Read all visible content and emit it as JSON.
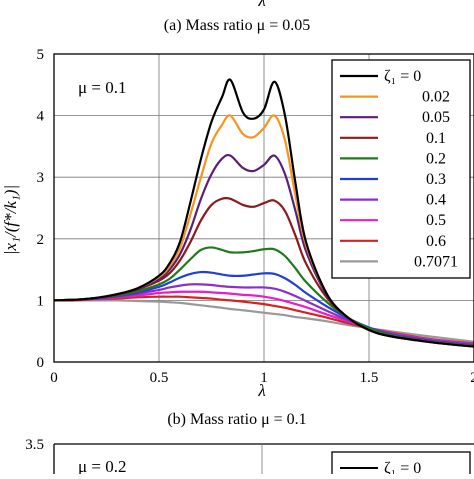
{
  "top_fragment": {
    "axis_label": "λ",
    "caption": "(a) Mass ratio μ = 0.05"
  },
  "bottom_fragment": {
    "ytick": "3.5",
    "mu_text": "μ = 0.2",
    "legend_first": "ζ₁ = 0"
  },
  "chart_data": {
    "type": "line",
    "caption": "(b) Mass ratio μ = 0.1",
    "annotation": "μ = 0.1",
    "xlabel": "λ",
    "ylabel": "|x₁/(f*/k₁)|",
    "xlim": [
      0,
      2
    ],
    "ylim": [
      0,
      5
    ],
    "xticks": [
      "0",
      "0.5",
      "1",
      "1.5",
      "2"
    ],
    "yticks": [
      "0",
      "1",
      "2",
      "3",
      "4",
      "5"
    ],
    "grid": true,
    "legend_position": "top-right",
    "legend_title_prefix": "ζ₁ = ",
    "x": [
      0,
      0.1,
      0.2,
      0.3,
      0.4,
      0.5,
      0.55,
      0.6,
      0.65,
      0.7,
      0.75,
      0.8,
      0.84,
      0.9,
      0.95,
      1.0,
      1.05,
      1.1,
      1.15,
      1.2,
      1.3,
      1.4,
      1.5,
      1.6,
      1.8,
      2.0
    ],
    "series": [
      {
        "name": "0",
        "color": "#000000",
        "values": [
          1.0,
          1.01,
          1.04,
          1.1,
          1.2,
          1.4,
          1.6,
          1.95,
          2.6,
          3.3,
          3.9,
          4.3,
          4.58,
          4.05,
          3.95,
          4.1,
          4.55,
          4.0,
          2.9,
          1.95,
          1.1,
          0.72,
          0.52,
          0.42,
          0.32,
          0.25
        ]
      },
      {
        "name": "0.02",
        "color": "#f7941d",
        "values": [
          1.0,
          1.01,
          1.04,
          1.1,
          1.2,
          1.38,
          1.55,
          1.85,
          2.4,
          3.0,
          3.55,
          3.85,
          4.0,
          3.7,
          3.65,
          3.8,
          4.0,
          3.6,
          2.7,
          1.9,
          1.1,
          0.72,
          0.52,
          0.42,
          0.32,
          0.25
        ]
      },
      {
        "name": "0.05",
        "color": "#5b1f7a",
        "values": [
          1.0,
          1.01,
          1.04,
          1.1,
          1.19,
          1.35,
          1.5,
          1.75,
          2.15,
          2.65,
          3.05,
          3.3,
          3.35,
          3.15,
          3.1,
          3.2,
          3.35,
          3.05,
          2.45,
          1.8,
          1.08,
          0.72,
          0.52,
          0.42,
          0.32,
          0.25
        ]
      },
      {
        "name": "0.1",
        "color": "#8b1a1a",
        "values": [
          1.0,
          1.01,
          1.04,
          1.09,
          1.18,
          1.32,
          1.44,
          1.65,
          1.95,
          2.3,
          2.55,
          2.65,
          2.65,
          2.55,
          2.52,
          2.58,
          2.62,
          2.45,
          2.05,
          1.6,
          1.04,
          0.72,
          0.52,
          0.42,
          0.32,
          0.25
        ]
      },
      {
        "name": "0.2",
        "color": "#1f7a1f",
        "values": [
          1.0,
          1.01,
          1.04,
          1.08,
          1.15,
          1.26,
          1.35,
          1.5,
          1.67,
          1.82,
          1.86,
          1.82,
          1.78,
          1.78,
          1.8,
          1.83,
          1.83,
          1.72,
          1.52,
          1.3,
          0.97,
          0.72,
          0.55,
          0.44,
          0.33,
          0.26
        ]
      },
      {
        "name": "0.3",
        "color": "#1f3fd6",
        "values": [
          1.0,
          1.01,
          1.03,
          1.07,
          1.13,
          1.22,
          1.29,
          1.37,
          1.43,
          1.46,
          1.45,
          1.42,
          1.4,
          1.4,
          1.42,
          1.44,
          1.43,
          1.36,
          1.25,
          1.12,
          0.9,
          0.71,
          0.56,
          0.45,
          0.34,
          0.27
        ]
      },
      {
        "name": "0.4",
        "color": "#8b2fc9",
        "values": [
          1.0,
          1.01,
          1.03,
          1.06,
          1.11,
          1.17,
          1.21,
          1.24,
          1.26,
          1.26,
          1.25,
          1.23,
          1.22,
          1.21,
          1.21,
          1.21,
          1.19,
          1.14,
          1.07,
          0.99,
          0.83,
          0.68,
          0.56,
          0.46,
          0.35,
          0.28
        ]
      },
      {
        "name": "0.5",
        "color": "#e81ec8",
        "values": [
          1.0,
          1.01,
          1.02,
          1.05,
          1.08,
          1.12,
          1.13,
          1.14,
          1.14,
          1.14,
          1.13,
          1.12,
          1.11,
          1.09,
          1.08,
          1.06,
          1.03,
          0.99,
          0.94,
          0.89,
          0.77,
          0.66,
          0.55,
          0.47,
          0.36,
          0.29
        ]
      },
      {
        "name": "0.6",
        "color": "#d92020",
        "values": [
          1.0,
          1.0,
          1.02,
          1.03,
          1.05,
          1.06,
          1.06,
          1.06,
          1.05,
          1.04,
          1.03,
          1.01,
          1.0,
          0.98,
          0.96,
          0.94,
          0.91,
          0.88,
          0.84,
          0.8,
          0.72,
          0.63,
          0.55,
          0.48,
          0.37,
          0.3
        ]
      },
      {
        "name": "0.7071",
        "color": "#999999",
        "values": [
          1.0,
          1.0,
          1.0,
          1.0,
          0.99,
          0.98,
          0.97,
          0.96,
          0.94,
          0.92,
          0.9,
          0.88,
          0.86,
          0.84,
          0.82,
          0.8,
          0.78,
          0.76,
          0.73,
          0.71,
          0.66,
          0.6,
          0.55,
          0.5,
          0.41,
          0.33
        ]
      }
    ]
  }
}
